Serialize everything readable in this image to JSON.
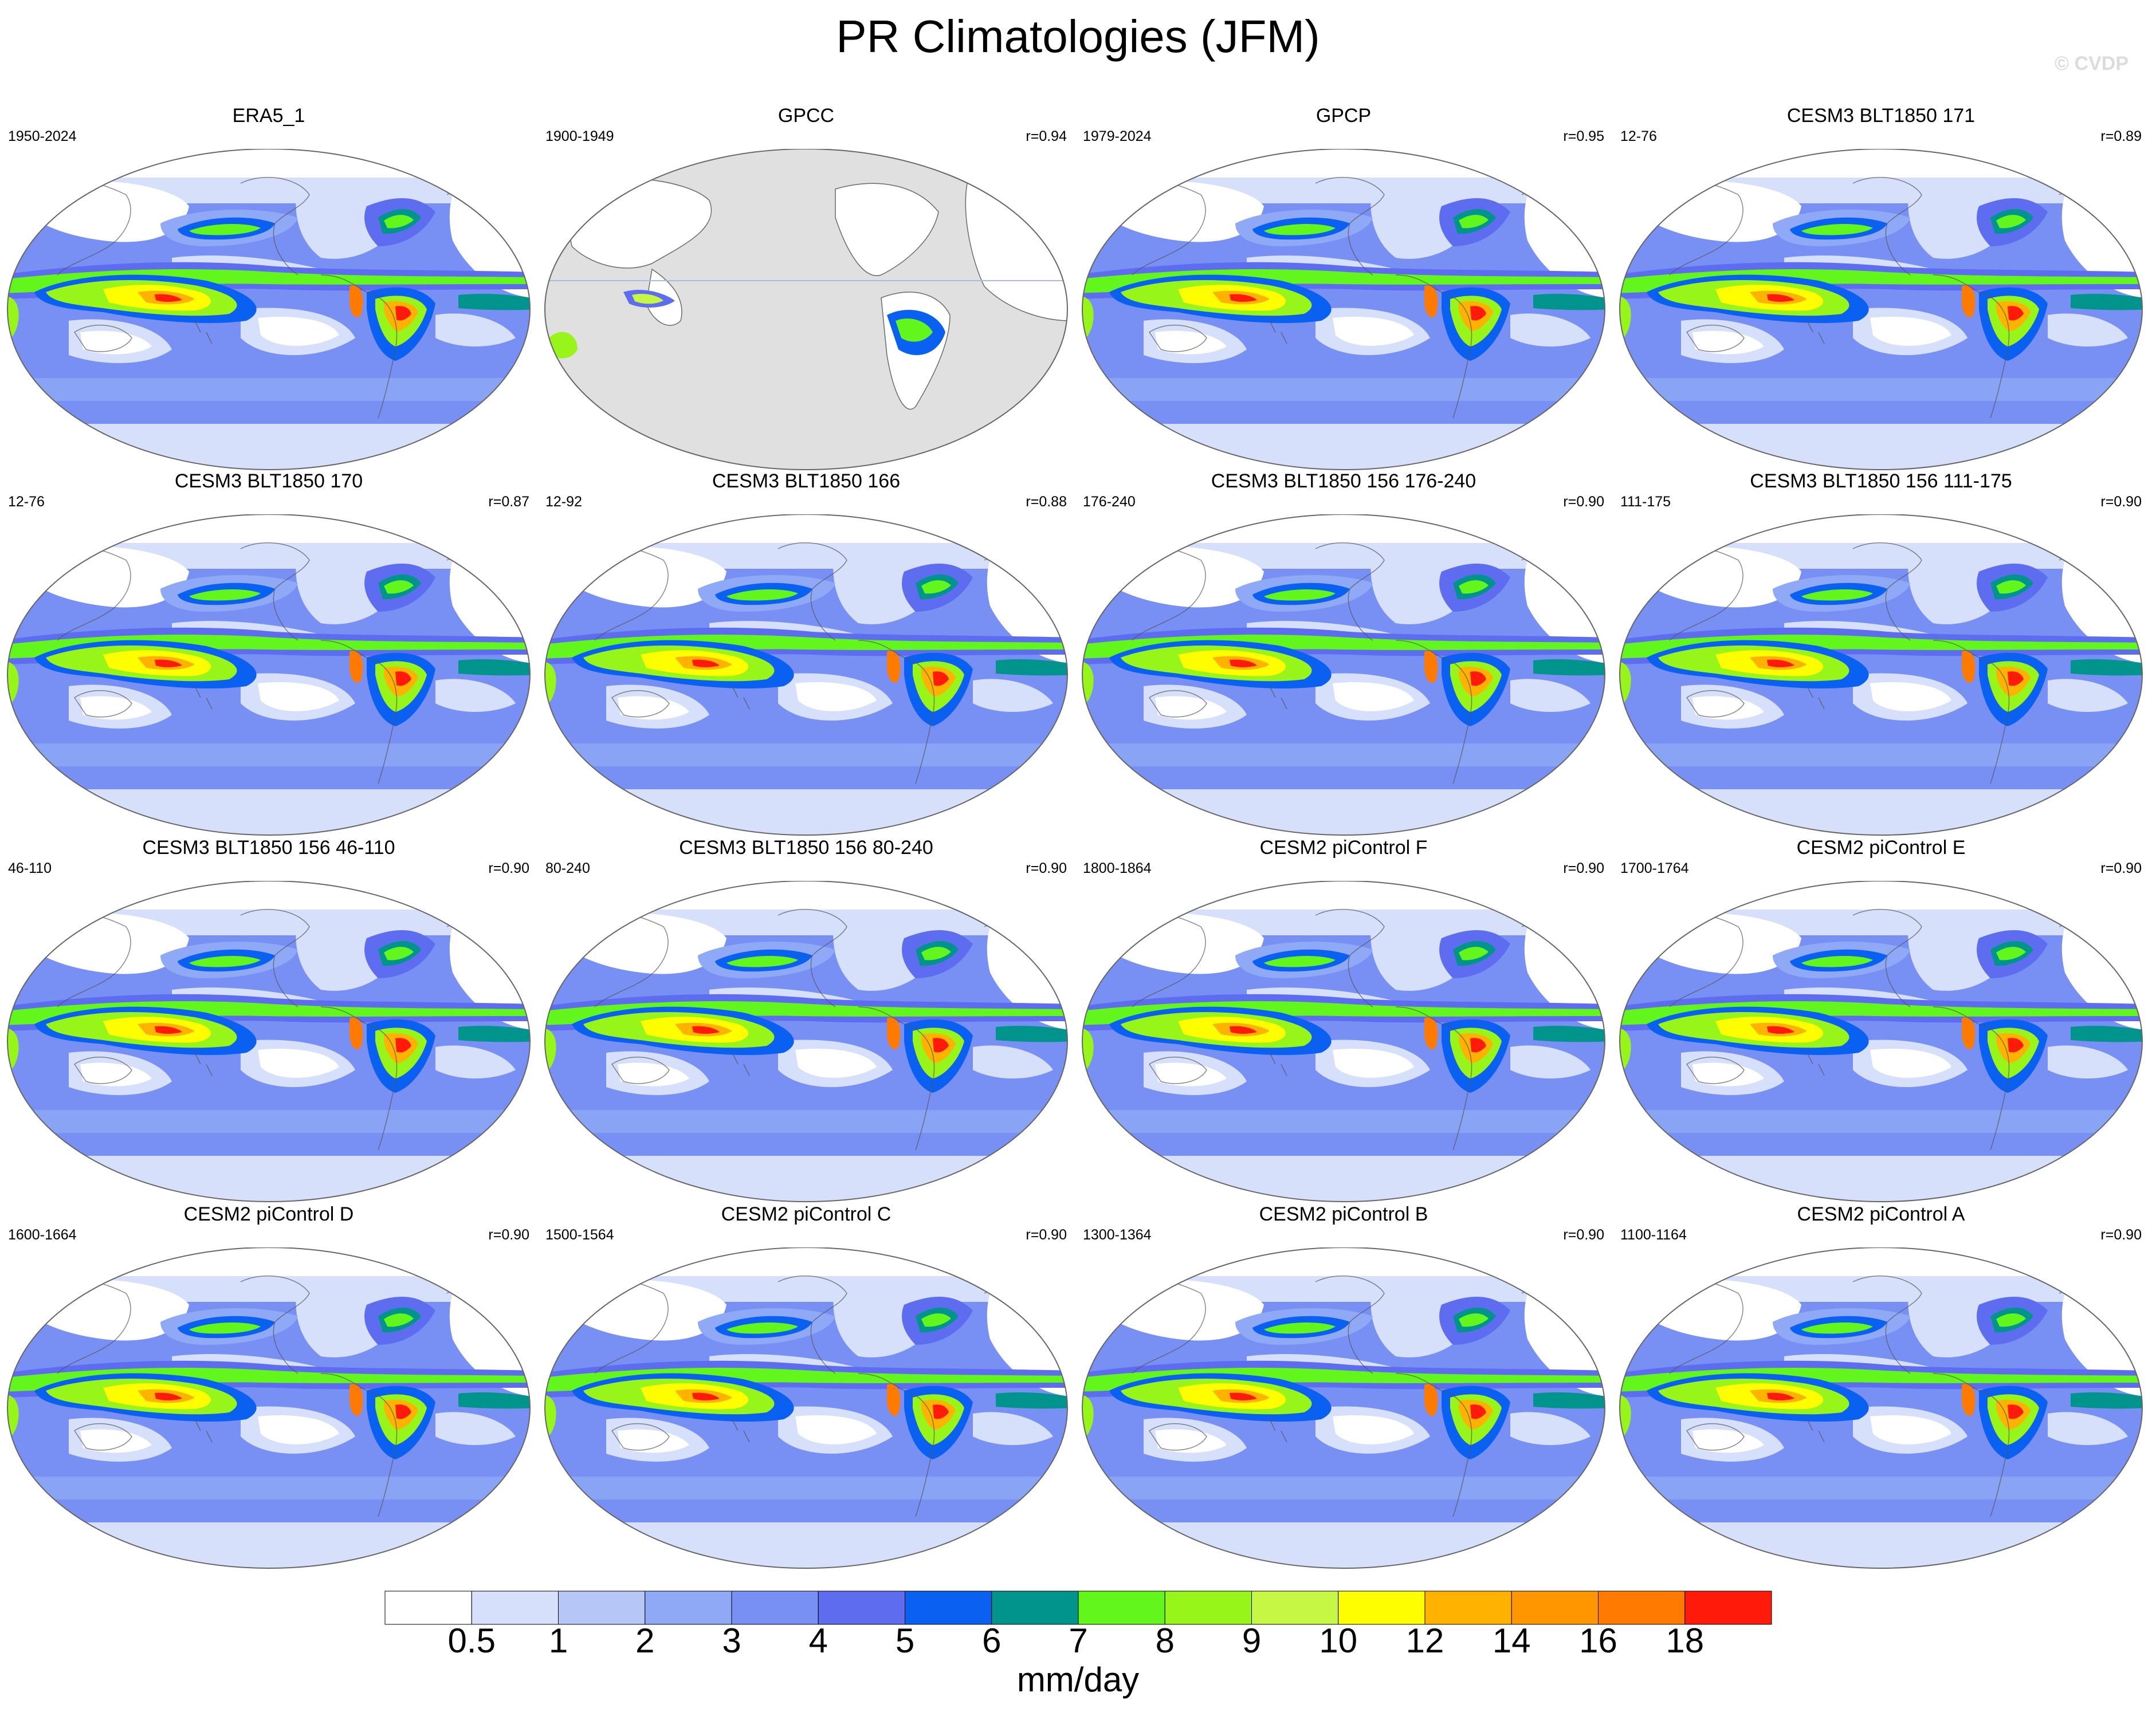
{
  "title": "PR Climatologies (JFM)",
  "watermark": "© CVDP",
  "panels": [
    {
      "name": "ERA5_1",
      "period": "1950-2024",
      "r": ""
    },
    {
      "name": "GPCC",
      "period": "1900-1949",
      "r": "r=0.94"
    },
    {
      "name": "GPCP",
      "period": "1979-2024",
      "r": "r=0.95"
    },
    {
      "name": "CESM3 BLT1850 171",
      "period": "12-76",
      "r": "r=0.89"
    },
    {
      "name": "CESM3 BLT1850 170",
      "period": "12-76",
      "r": "r=0.87"
    },
    {
      "name": "CESM3 BLT1850 166",
      "period": "12-92",
      "r": "r=0.88"
    },
    {
      "name": "CESM3 BLT1850 156 176-240",
      "period": "176-240",
      "r": "r=0.90"
    },
    {
      "name": "CESM3 BLT1850 156 111-175",
      "period": "111-175",
      "r": "r=0.90"
    },
    {
      "name": "CESM3 BLT1850 156 46-110",
      "period": "46-110",
      "r": "r=0.90"
    },
    {
      "name": "CESM3 BLT1850 156 80-240",
      "period": "80-240",
      "r": "r=0.90"
    },
    {
      "name": "CESM2 piControl F",
      "period": "1800-1864",
      "r": "r=0.90"
    },
    {
      "name": "CESM2 piControl E",
      "period": "1700-1764",
      "r": "r=0.90"
    },
    {
      "name": "CESM2 piControl D",
      "period": "1600-1664",
      "r": "r=0.90"
    },
    {
      "name": "CESM2 piControl C",
      "period": "1500-1564",
      "r": "r=0.90"
    },
    {
      "name": "CESM2 piControl B",
      "period": "1300-1364",
      "r": "r=0.90"
    },
    {
      "name": "CESM2 piControl A",
      "period": "1100-1164",
      "r": "r=0.90"
    }
  ],
  "chart_data": {
    "type": "heatmap",
    "title": "PR Climatologies (JFM)",
    "variable": "precipitation",
    "units": "mm/day",
    "colorbar": {
      "levels": [
        "0.5",
        "1",
        "2",
        "3",
        "4",
        "5",
        "6",
        "7",
        "8",
        "9",
        "10",
        "12",
        "14",
        "16",
        "18"
      ],
      "colors": [
        "#ffffff",
        "#d6e0fb",
        "#b6c6f7",
        "#8fa9f6",
        "#7890f4",
        "#5e6cf0",
        "#0a60f0",
        "#00948c",
        "#62f61c",
        "#98f51a",
        "#c6f744",
        "#fffe00",
        "#ffb300",
        "#ff9600",
        "#ff7a00",
        "#ff1a0a"
      ],
      "label": "mm/day"
    }
  }
}
